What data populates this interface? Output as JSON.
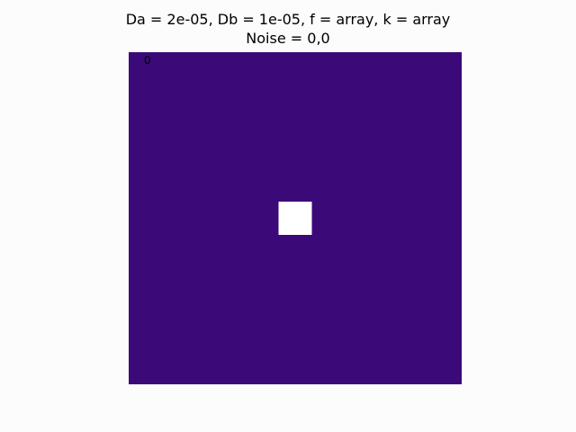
{
  "chart_data": {
    "type": "heatmap",
    "title_lines": [
      "Da = 2e-05, Db = 1e-05, f = array, k = array",
      "Noise = 0,0"
    ],
    "frame_label": "0",
    "grid_size": [
      100,
      100
    ],
    "value_range": [
      0,
      1
    ],
    "colormap": {
      "low": "#3b0a78",
      "high": "#ffffff"
    },
    "regions": [
      {
        "name": "background",
        "value": 0,
        "x_range": [
          0,
          100
        ],
        "y_range": [
          0,
          100
        ]
      },
      {
        "name": "seed-square",
        "value": 1,
        "x_range": [
          45,
          55
        ],
        "y_range": [
          45,
          55
        ]
      }
    ],
    "grid": false,
    "axes_visible": false
  }
}
